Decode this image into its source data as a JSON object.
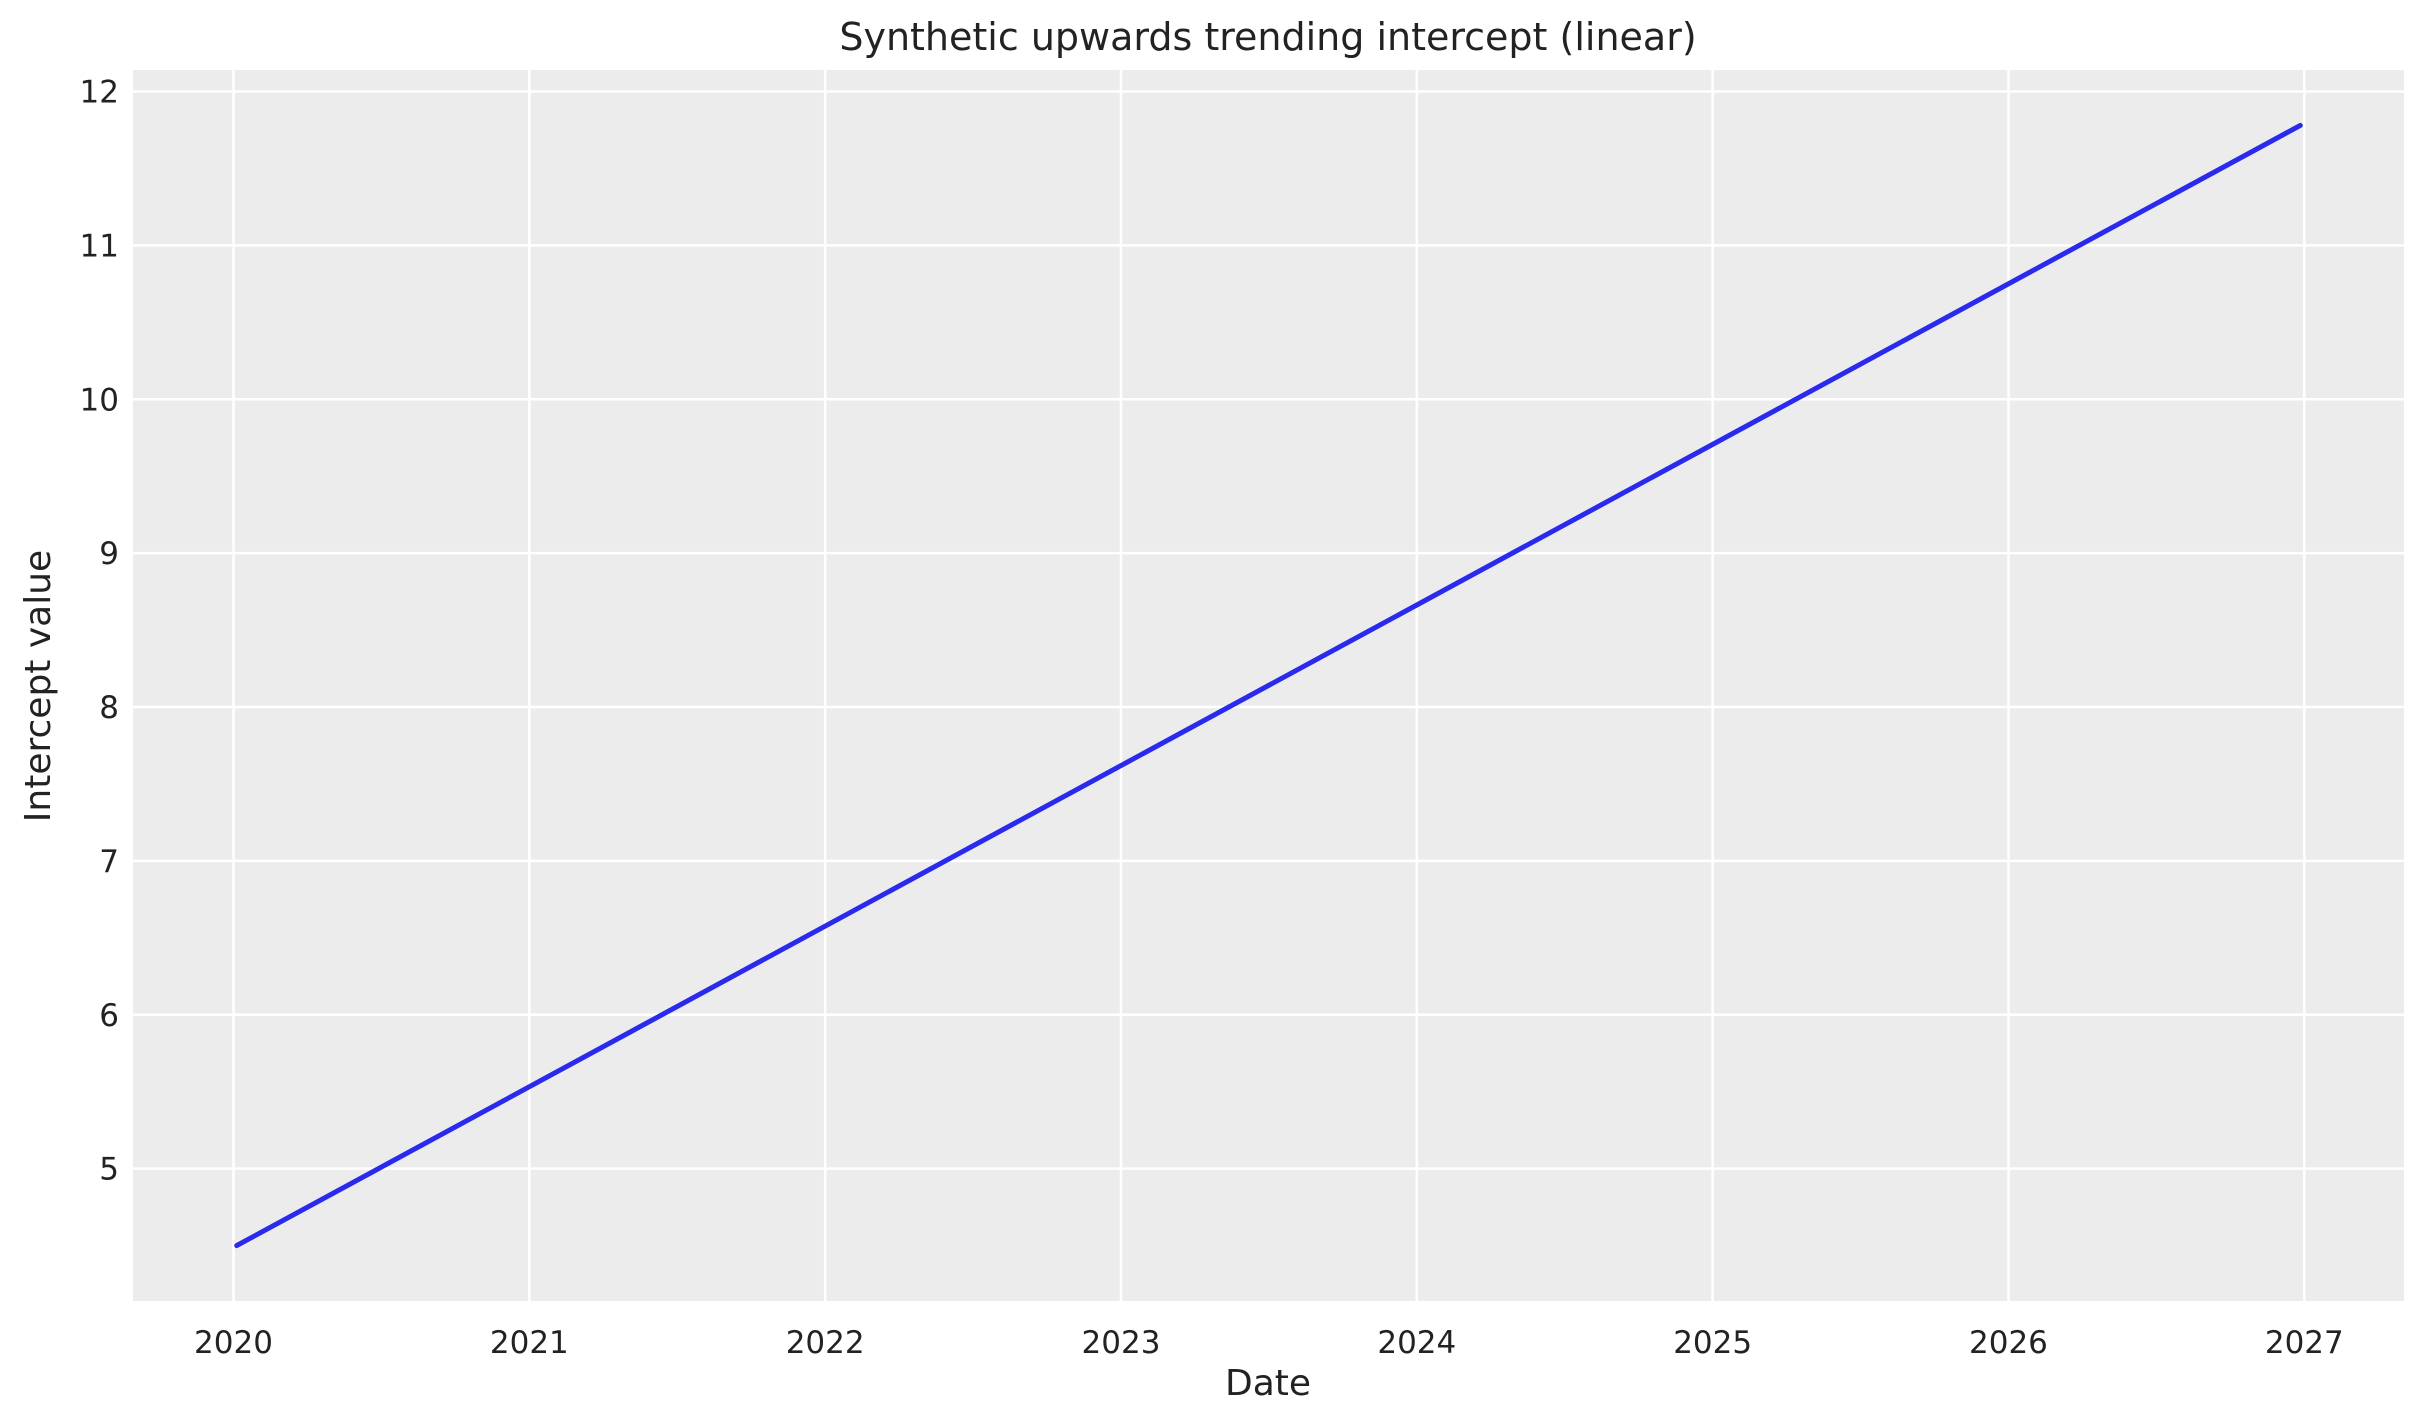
{
  "chart_data": {
    "type": "line",
    "title": "Synthetic upwards trending intercept (linear)",
    "xlabel": "Date",
    "ylabel": "Intercept value",
    "x_is_date": true,
    "xlim": [
      "2019-08-30",
      "2027-05-04"
    ],
    "ylim": [
      4.14,
      12.14
    ],
    "xticks": [
      "2020",
      "2021",
      "2022",
      "2023",
      "2024",
      "2025",
      "2026",
      "2027"
    ],
    "yticks": [
      "5",
      "6",
      "7",
      "8",
      "9",
      "10",
      "11",
      "12"
    ],
    "grid": true,
    "background": "#ececec",
    "series": [
      {
        "color": "#2a2aee",
        "x": [
          "2020-01-05",
          "2026-12-27"
        ],
        "y": [
          4.5,
          11.78
        ]
      }
    ]
  }
}
